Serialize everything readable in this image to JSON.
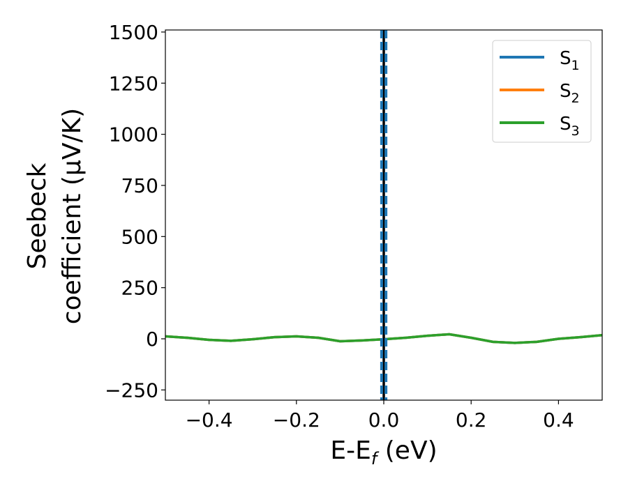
{
  "chart_data": {
    "type": "line",
    "title": "",
    "xlabel": "E-E",
    "xlabel_sub": "f",
    "xlabel_unit": " (eV)",
    "ylabel_line1": "Seebeck",
    "ylabel_line2": "coefficient  (μV/K)",
    "xlim": [
      -0.5,
      0.5
    ],
    "ylim": [
      -300,
      1510
    ],
    "xticks": [
      -0.4,
      -0.2,
      0.0,
      0.2,
      0.4
    ],
    "xtick_labels": [
      "−0.4",
      "−0.2",
      "0.0",
      "0.2",
      "0.4"
    ],
    "yticks": [
      -250,
      0,
      250,
      500,
      750,
      1000,
      1250,
      1500
    ],
    "ytick_labels": [
      "−250",
      "0",
      "250",
      "500",
      "750",
      "1000",
      "1250",
      "1500"
    ],
    "grid": false,
    "legend_position": "top-right",
    "x": [
      -0.5,
      -0.45,
      -0.4,
      -0.35,
      -0.3,
      -0.25,
      -0.2,
      -0.15,
      -0.1,
      -0.05,
      0.0,
      0.05,
      0.1,
      0.15,
      0.2,
      0.25,
      0.3,
      0.35,
      0.4,
      0.45,
      0.5
    ],
    "series": [
      {
        "name": "S",
        "sub": "1",
        "color": "#1f77b4",
        "values": [
          12,
          5,
          -5,
          -10,
          -2,
          8,
          12,
          5,
          -12,
          -8,
          -2,
          5,
          15,
          22,
          5,
          -15,
          -20,
          -15,
          0,
          8,
          18
        ]
      },
      {
        "name": "S",
        "sub": "2",
        "color": "#ff7f0e",
        "values": [
          12,
          5,
          -5,
          -10,
          -2,
          8,
          12,
          5,
          -12,
          -8,
          -2,
          5,
          15,
          22,
          5,
          -15,
          -20,
          -15,
          0,
          8,
          18
        ]
      },
      {
        "name": "S",
        "sub": "3",
        "color": "#2ca02c",
        "values": [
          12,
          5,
          -5,
          -10,
          -2,
          8,
          12,
          5,
          -12,
          -8,
          -2,
          5,
          15,
          22,
          5,
          -15,
          -20,
          -15,
          0,
          8,
          18
        ]
      }
    ],
    "vertical_lines": [
      {
        "x": 0.0,
        "color": "#000000",
        "style": "solid"
      },
      {
        "x": -0.005,
        "color": "#1f77b4",
        "style": "dashed"
      },
      {
        "x": 0.005,
        "color": "#1f77b4",
        "style": "dashed"
      }
    ]
  }
}
